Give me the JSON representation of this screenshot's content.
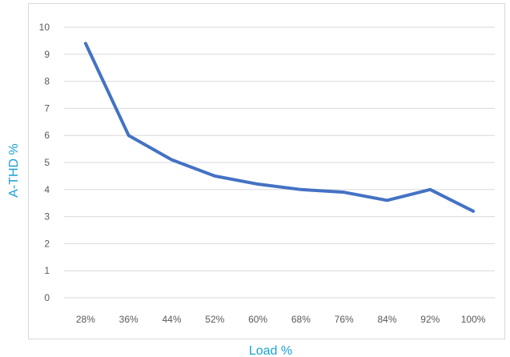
{
  "chart_data": {
    "type": "line",
    "title": "",
    "xlabel": "Load %",
    "ylabel": "A-THD %",
    "categories": [
      "28%",
      "36%",
      "44%",
      "52%",
      "60%",
      "68%",
      "76%",
      "84%",
      "92%",
      "100%"
    ],
    "series": [
      {
        "values": [
          9.4,
          6.0,
          5.1,
          4.5,
          4.2,
          4.0,
          3.9,
          3.6,
          4.0,
          3.2
        ]
      }
    ],
    "ylim": [
      0,
      10
    ],
    "yticks": [
      "0",
      "1",
      "2",
      "3",
      "4",
      "5",
      "6",
      "7",
      "8",
      "9",
      "10"
    ],
    "grid": true,
    "legend": "none",
    "colors": {
      "series": "#4472c4",
      "axis_title": "#1ba1d6",
      "grid": "#d9d9d9",
      "tick_text": "#595959"
    }
  }
}
